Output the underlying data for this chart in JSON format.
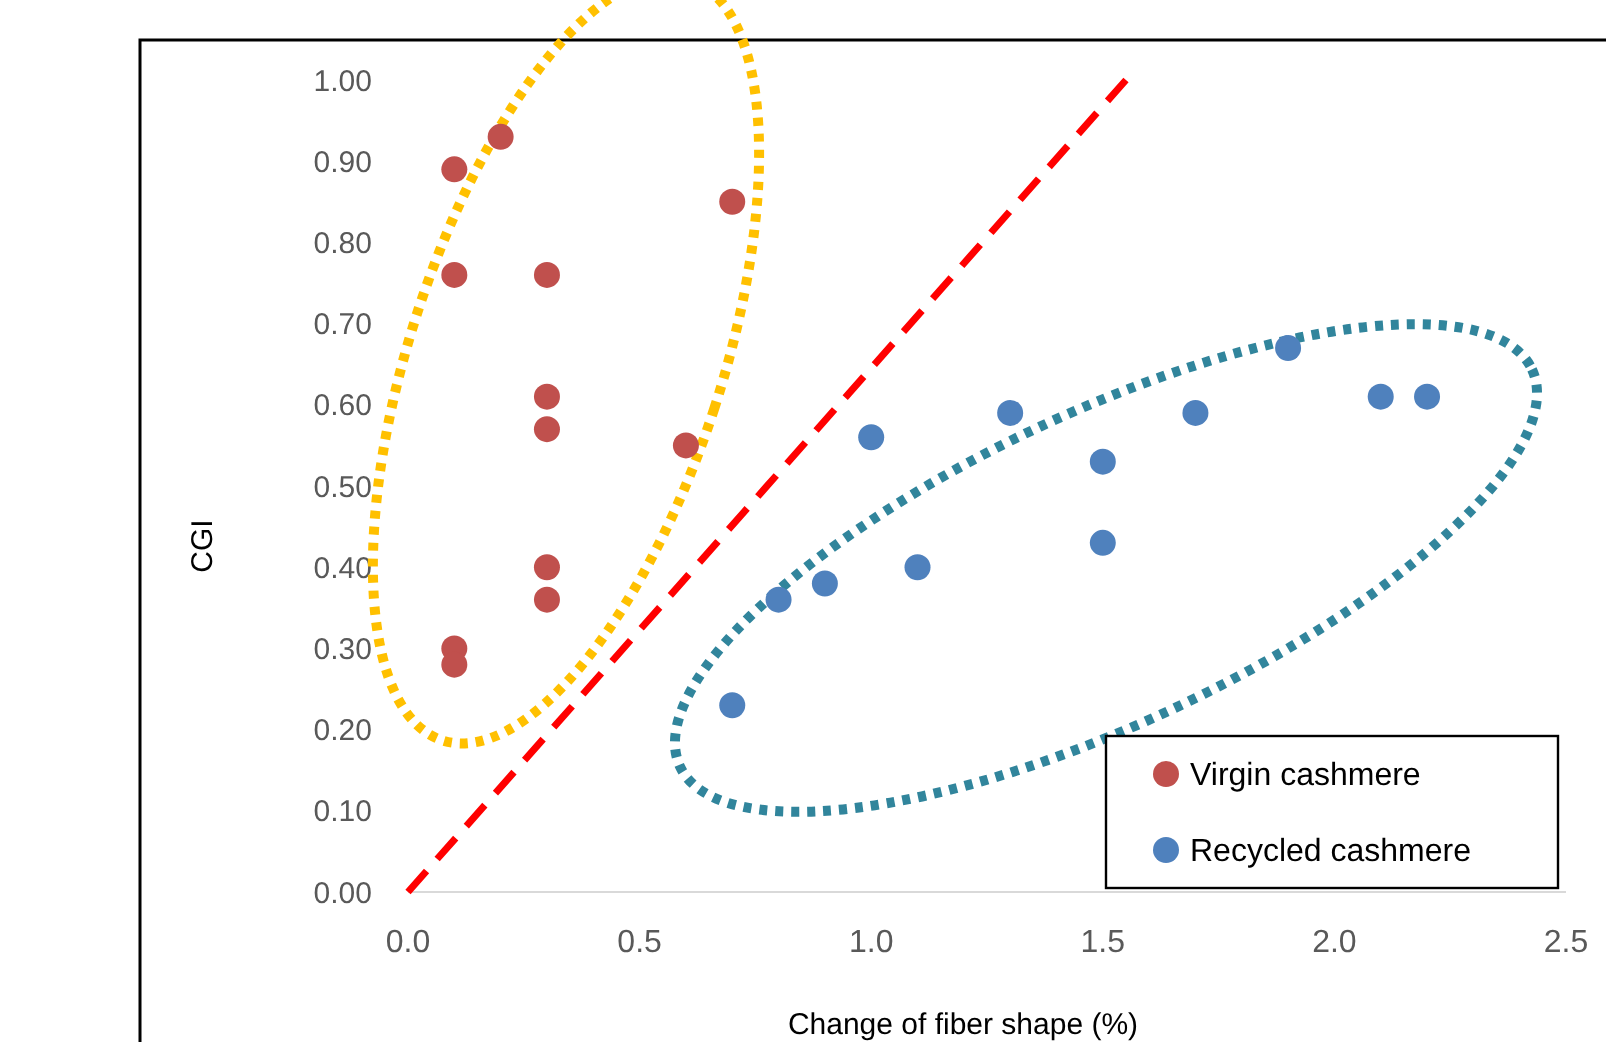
{
  "chart_data": {
    "type": "scatter",
    "xlabel": "Change of fiber shape (%)",
    "ylabel": "CGI",
    "xlim": [
      0,
      2.5
    ],
    "xticks": [
      {
        "value": 0,
        "label": "0.0"
      },
      {
        "value": 0.5,
        "label": "0.5"
      },
      {
        "value": 1,
        "label": "1.0"
      },
      {
        "value": 1.5,
        "label": "1.5"
      },
      {
        "value": 2,
        "label": "2.0"
      },
      {
        "value": 2.5,
        "label": "2.5"
      }
    ],
    "ylim": [
      0,
      1
    ],
    "yticks": [
      {
        "value": 0,
        "label": "0.00"
      },
      {
        "value": 0.1,
        "label": "0.10"
      },
      {
        "value": 0.2,
        "label": "0.20"
      },
      {
        "value": 0.3,
        "label": "0.30"
      },
      {
        "value": 0.4,
        "label": "0.40"
      },
      {
        "value": 0.5,
        "label": "0.50"
      },
      {
        "value": 0.6,
        "label": "0.60"
      },
      {
        "value": 0.7,
        "label": "0.70"
      },
      {
        "value": 0.8,
        "label": "0.80"
      },
      {
        "value": 0.9,
        "label": "0.90"
      },
      {
        "value": 1,
        "label": "1.00"
      }
    ],
    "grid": false,
    "legend": "bottom right",
    "marker": "circle",
    "series": [
      {
        "name": "Virgin cashmere",
        "color": "#c0504d",
        "x": [
          0.1,
          0.2,
          0.1,
          0.3,
          0.7,
          0.3,
          0.3,
          0.6,
          0.3,
          0.3,
          0.1,
          0.1
        ],
        "values": [
          0.89,
          0.93,
          0.76,
          0.76,
          0.85,
          0.61,
          0.57,
          0.55,
          0.4,
          0.36,
          0.3,
          0.28
        ]
      },
      {
        "name": "Recycled cashmere",
        "color": "#4f81bd",
        "x": [
          0.7,
          0.8,
          0.9,
          1.0,
          1.1,
          1.3,
          1.5,
          1.5,
          1.7,
          1.9,
          2.1,
          2.2
        ],
        "values": [
          0.23,
          0.36,
          0.38,
          0.56,
          0.4,
          0.59,
          0.53,
          0.43,
          0.59,
          0.67,
          0.61,
          0.61
        ]
      },
      {
        "type": "line",
        "color": "#ff0000",
        "line_style": "dashed",
        "marker": "none",
        "x": [
          0,
          1.55
        ],
        "values": [
          0,
          1.0
        ]
      }
    ]
  }
}
